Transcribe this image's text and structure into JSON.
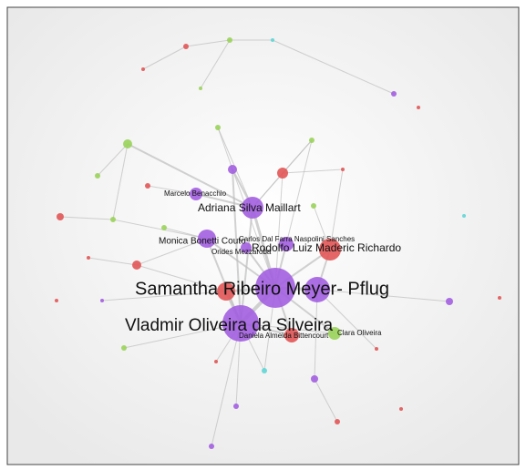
{
  "nodes": [
    {
      "label": "Marcelo Benacchio"
    },
    {
      "label": "Adriana Silva Maillart"
    },
    {
      "label": "Monica Bonetti Couto"
    },
    {
      "label": "Carlos Dal Farra Naspolini Sanches"
    },
    {
      "label": "Orides Mezzaroba"
    },
    {
      "label": "Rodolfo Luiz Maderic Richardo"
    },
    {
      "label": "Samantha Ribeiro Meyer- Pflug"
    },
    {
      "label": "Vladmir Oliveira da Silveira"
    },
    {
      "label": "Daniela Almeida Bittencourt"
    },
    {
      "label": "Clara Oliveira"
    }
  ]
}
